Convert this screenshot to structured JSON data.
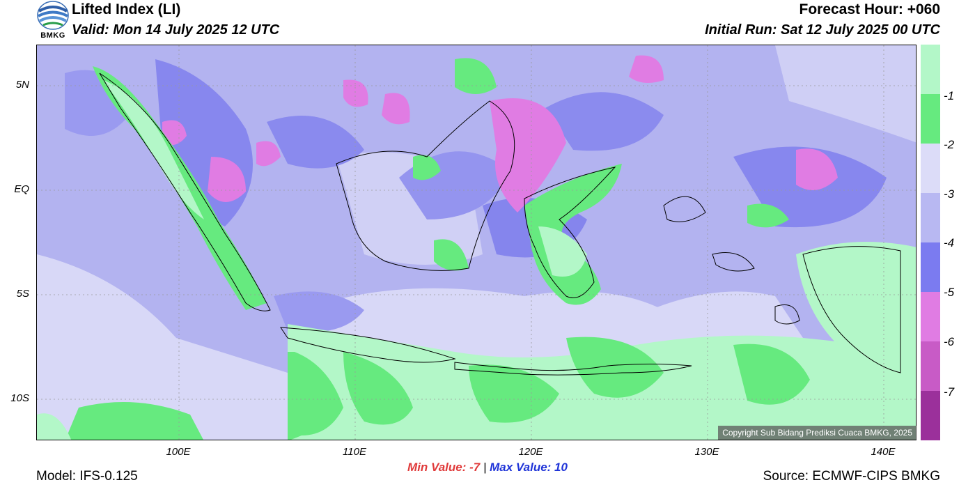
{
  "header": {
    "title": "Lifted Index (LI)",
    "valid": "Valid: Mon 14 July 2025 12 UTC",
    "forecast_hour": "Forecast Hour: +060",
    "initial_run": "Initial Run: Sat 12 July 2025 00 UTC"
  },
  "logo": {
    "text": "BMKG"
  },
  "map": {
    "lat_labels": [
      "5N",
      "EQ",
      "5S",
      "10S"
    ],
    "lon_labels": [
      "100E",
      "110E",
      "120E",
      "130E",
      "140E"
    ],
    "copyright": "Copyright Sub Bidang Prediksi Cuaca BMKG, 2025"
  },
  "colorbar": {
    "labels": [
      "-1",
      "-2",
      "-3",
      "-4",
      "-5",
      "-6",
      "-7"
    ],
    "colors": [
      "#b3f7c8",
      "#66ea7f",
      "#dcdcf8",
      "#b8b8f2",
      "#7b7bf0",
      "#e07ce3",
      "#c85bc6",
      "#9b309b"
    ]
  },
  "footer": {
    "min_label": "Min Value:  -7",
    "separator": "|",
    "max_label": "Max Value:  10",
    "model": "Model: IFS-0.125",
    "source": "Source: ECMWF-CIPS BMKG"
  }
}
